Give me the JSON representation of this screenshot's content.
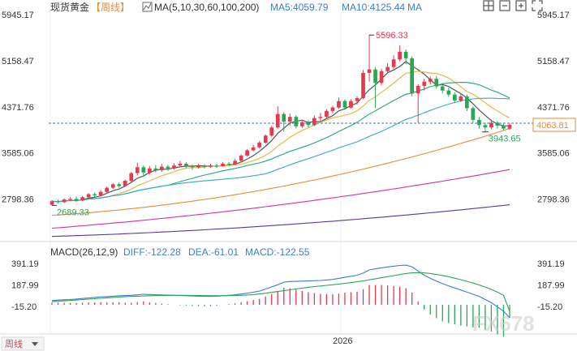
{
  "header": {
    "symbol": "现货黄金",
    "period": "【周线】",
    "ma_label": "MA(5,10,30,60,100,200)",
    "ma5_text": "MA5:4059.79",
    "ma10_text": "MA10:4125.44",
    "ma_more": "MA"
  },
  "toolbar": {
    "icons": [
      "grid-icon",
      "zoom-out-icon",
      "zoom-in-icon",
      "fullscreen-icon"
    ]
  },
  "macd_header": {
    "label": "MACD(26,12,9)",
    "diff_text": "DIFF:-122.28",
    "dea_text": "DEA:-61.01",
    "macd_text": "MACD:-122.55"
  },
  "footer": {
    "period_select": "周线",
    "watermark": "FX678"
  },
  "colors": {
    "up": "#e8384d",
    "down": "#2aa655",
    "ma5": "#555555",
    "ma10": "#e8b84a",
    "ma30": "#22a67a",
    "ma60": "#33aacc",
    "ma100": "#ee8833",
    "ma200": "#cc33aa",
    "ma_long": "#5a35a0",
    "diff": "#3a7fcc",
    "dea": "#2aa655",
    "label_blue": "#3a7fcc",
    "last_price": "#ee8833"
  },
  "chart_data": [
    {
      "type": "candlestick",
      "title": "现货黄金 周线",
      "y_ticks": [
        "5945.17",
        "5158.47",
        "4371.76",
        "3585.06",
        "2798.36"
      ],
      "ylim": [
        2100,
        5945.17
      ],
      "x_label": "2026",
      "annotations": {
        "high": "5596.33",
        "low_start": "2689.33",
        "recent_low": "3943.65",
        "last_price": "4063.81"
      },
      "candles": [
        [
          2700,
          2760,
          2689,
          2780
        ],
        [
          2760,
          2745,
          2720,
          2790
        ],
        [
          2745,
          2790,
          2730,
          2810
        ],
        [
          2790,
          2800,
          2760,
          2830
        ],
        [
          2800,
          2770,
          2750,
          2840
        ],
        [
          2770,
          2830,
          2760,
          2850
        ],
        [
          2830,
          2880,
          2820,
          2900
        ],
        [
          2880,
          2860,
          2830,
          2910
        ],
        [
          2860,
          2920,
          2850,
          2950
        ],
        [
          2920,
          2990,
          2900,
          3010
        ],
        [
          2990,
          3050,
          2970,
          3070
        ],
        [
          3050,
          3020,
          2990,
          3080
        ],
        [
          3020,
          3110,
          3010,
          3130
        ],
        [
          3110,
          3240,
          3080,
          3260
        ],
        [
          3240,
          3340,
          3200,
          3420
        ],
        [
          3340,
          3250,
          3180,
          3370
        ],
        [
          3250,
          3320,
          3220,
          3360
        ],
        [
          3320,
          3290,
          3250,
          3380
        ],
        [
          3290,
          3350,
          3260,
          3400
        ],
        [
          3350,
          3320,
          3280,
          3380
        ],
        [
          3320,
          3370,
          3300,
          3410
        ],
        [
          3370,
          3400,
          3340,
          3450
        ],
        [
          3400,
          3360,
          3330,
          3430
        ],
        [
          3360,
          3340,
          3300,
          3390
        ],
        [
          3340,
          3360,
          3320,
          3400
        ],
        [
          3360,
          3350,
          3320,
          3390
        ],
        [
          3350,
          3370,
          3330,
          3400
        ],
        [
          3370,
          3360,
          3330,
          3400
        ],
        [
          3360,
          3400,
          3350,
          3430
        ],
        [
          3400,
          3390,
          3360,
          3430
        ],
        [
          3390,
          3450,
          3380,
          3480
        ],
        [
          3450,
          3540,
          3430,
          3560
        ],
        [
          3540,
          3630,
          3520,
          3650
        ],
        [
          3630,
          3680,
          3610,
          3720
        ],
        [
          3680,
          3760,
          3660,
          3790
        ],
        [
          3760,
          3880,
          3740,
          3900
        ],
        [
          3880,
          4020,
          3860,
          4050
        ],
        [
          4020,
          4250,
          4000,
          4380
        ],
        [
          4250,
          4120,
          3950,
          4280
        ],
        [
          4120,
          4200,
          4050,
          4260
        ],
        [
          4200,
          4040,
          4000,
          4230
        ],
        [
          4040,
          4110,
          4010,
          4150
        ],
        [
          4110,
          4060,
          4020,
          4140
        ],
        [
          4060,
          4180,
          4040,
          4220
        ],
        [
          4180,
          4200,
          4130,
          4270
        ],
        [
          4200,
          4300,
          4170,
          4330
        ],
        [
          4300,
          4360,
          4260,
          4390
        ],
        [
          4360,
          4470,
          4340,
          4530
        ],
        [
          4470,
          4360,
          4320,
          4500
        ],
        [
          4360,
          4470,
          4340,
          4500
        ],
        [
          4470,
          4520,
          4410,
          4550
        ],
        [
          4520,
          4950,
          4500,
          5000
        ],
        [
          4950,
          5010,
          4800,
          5596
        ],
        [
          5010,
          4780,
          4350,
          5050
        ],
        [
          4780,
          4980,
          4740,
          5020
        ],
        [
          4980,
          5050,
          4960,
          5120
        ],
        [
          5050,
          5180,
          5020,
          5250
        ],
        [
          5180,
          5310,
          5150,
          5420
        ],
        [
          5310,
          5200,
          5100,
          5350
        ],
        [
          5200,
          4600,
          4550,
          5230
        ],
        [
          4600,
          4730,
          4100,
          4760
        ],
        [
          4730,
          4800,
          4650,
          4850
        ],
        [
          4800,
          4850,
          4750,
          4890
        ],
        [
          4850,
          4720,
          4680,
          4900
        ],
        [
          4720,
          4650,
          4600,
          4780
        ],
        [
          4650,
          4580,
          4540,
          4700
        ],
        [
          4580,
          4480,
          4440,
          4620
        ],
        [
          4480,
          4550,
          4450,
          4600
        ],
        [
          4550,
          4350,
          4300,
          4580
        ],
        [
          4350,
          4150,
          4100,
          4380
        ],
        [
          4150,
          4060,
          4000,
          4200
        ],
        [
          4060,
          4020,
          3944,
          4100
        ],
        [
          4020,
          4100,
          3990,
          4150
        ],
        [
          4100,
          4050,
          4000,
          4130
        ],
        [
          4050,
          4000,
          3970,
          4080
        ],
        [
          4000,
          4064,
          3980,
          4090
        ]
      ]
    },
    {
      "type": "line",
      "title": "MACD(26,12,9)",
      "y_ticks": [
        "391.19",
        "187.99",
        "-15.20"
      ],
      "ylim": [
        -260,
        460
      ],
      "series": [
        {
          "name": "DIFF",
          "values": [
            40,
            45,
            48,
            50,
            55,
            60,
            65,
            70,
            75,
            78,
            82,
            86,
            88,
            90,
            95,
            100,
            98,
            96,
            94,
            92,
            90,
            88,
            86,
            84,
            82,
            80,
            80,
            82,
            86,
            90,
            95,
            102,
            110,
            120,
            130,
            150,
            170,
            190,
            215,
            220,
            222,
            224,
            226,
            228,
            230,
            235,
            240,
            250,
            260,
            270,
            280,
            300,
            330,
            340,
            350,
            358,
            365,
            372,
            375,
            360,
            320,
            280,
            250,
            225,
            200,
            180,
            160,
            140,
            120,
            100,
            80,
            50,
            20,
            -20,
            -60,
            -122
          ]
        },
        {
          "name": "DEA",
          "values": [
            30,
            34,
            38,
            42,
            46,
            50,
            54,
            58,
            62,
            66,
            70,
            74,
            78,
            80,
            82,
            84,
            86,
            87,
            88,
            89,
            90,
            90,
            90,
            89,
            88,
            87,
            86,
            86,
            86,
            87,
            88,
            90,
            93,
            97,
            102,
            110,
            118,
            126,
            134,
            142,
            150,
            158,
            166,
            172,
            178,
            184,
            190,
            196,
            203,
            210,
            218,
            226,
            236,
            246,
            256,
            266,
            276,
            286,
            296,
            302,
            304,
            302,
            296,
            288,
            278,
            266,
            252,
            238,
            222,
            206,
            188,
            168,
            146,
            120,
            90,
            -61
          ]
        },
        {
          "name": "MACD",
          "values": [
            20,
            22,
            20,
            16,
            18,
            20,
            22,
            24,
            26,
            24,
            24,
            24,
            20,
            20,
            26,
            32,
            24,
            18,
            12,
            6,
            0,
            -4,
            -8,
            -10,
            -12,
            -14,
            -12,
            -8,
            0,
            6,
            14,
            24,
            34,
            46,
            56,
            80,
            104,
            128,
            162,
            156,
            144,
            132,
            120,
            112,
            104,
            102,
            100,
            108,
            114,
            120,
            124,
            148,
            188,
            188,
            188,
            184,
            178,
            172,
            158,
            116,
            32,
            -44,
            -92,
            -126,
            -156,
            -172,
            -184,
            -196,
            -204,
            -212,
            -216,
            -236,
            -252,
            -280,
            -300,
            -122
          ]
        }
      ]
    }
  ]
}
